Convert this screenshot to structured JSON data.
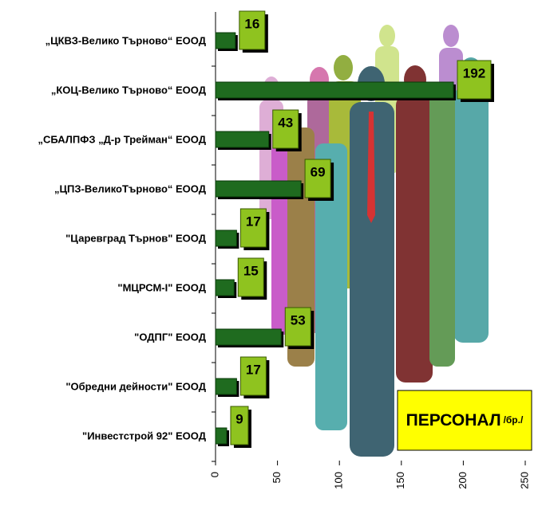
{
  "chart_data": {
    "type": "bar",
    "orientation": "horizontal",
    "title": "ПЕРСОНАЛ",
    "unit": "/бр./",
    "categories": [
      "„ЦКВЗ-Велико Търново“ ЕООД",
      "„КОЦ-Велико Търново“ ЕООД",
      "„СБАЛПФЗ „Д-р Трейман“ ЕООД",
      "„ЦПЗ-ВеликоТърново“ ЕООД",
      "\"Царевград Търнов\" ЕООД",
      "\"МЦРСМ-I\" ЕООД",
      "\"ОДПГ\" ЕООД",
      "\"Обредни дейности\" ЕООД",
      "\"Инвестстрой 92\" ЕООД"
    ],
    "values": [
      16,
      192,
      43,
      69,
      17,
      15,
      53,
      17,
      9
    ],
    "color": "#1f6b1f",
    "label_color": "#8fc31f",
    "xlim": [
      0,
      250
    ],
    "xticks": [
      0,
      50,
      100,
      150,
      200,
      250
    ]
  }
}
